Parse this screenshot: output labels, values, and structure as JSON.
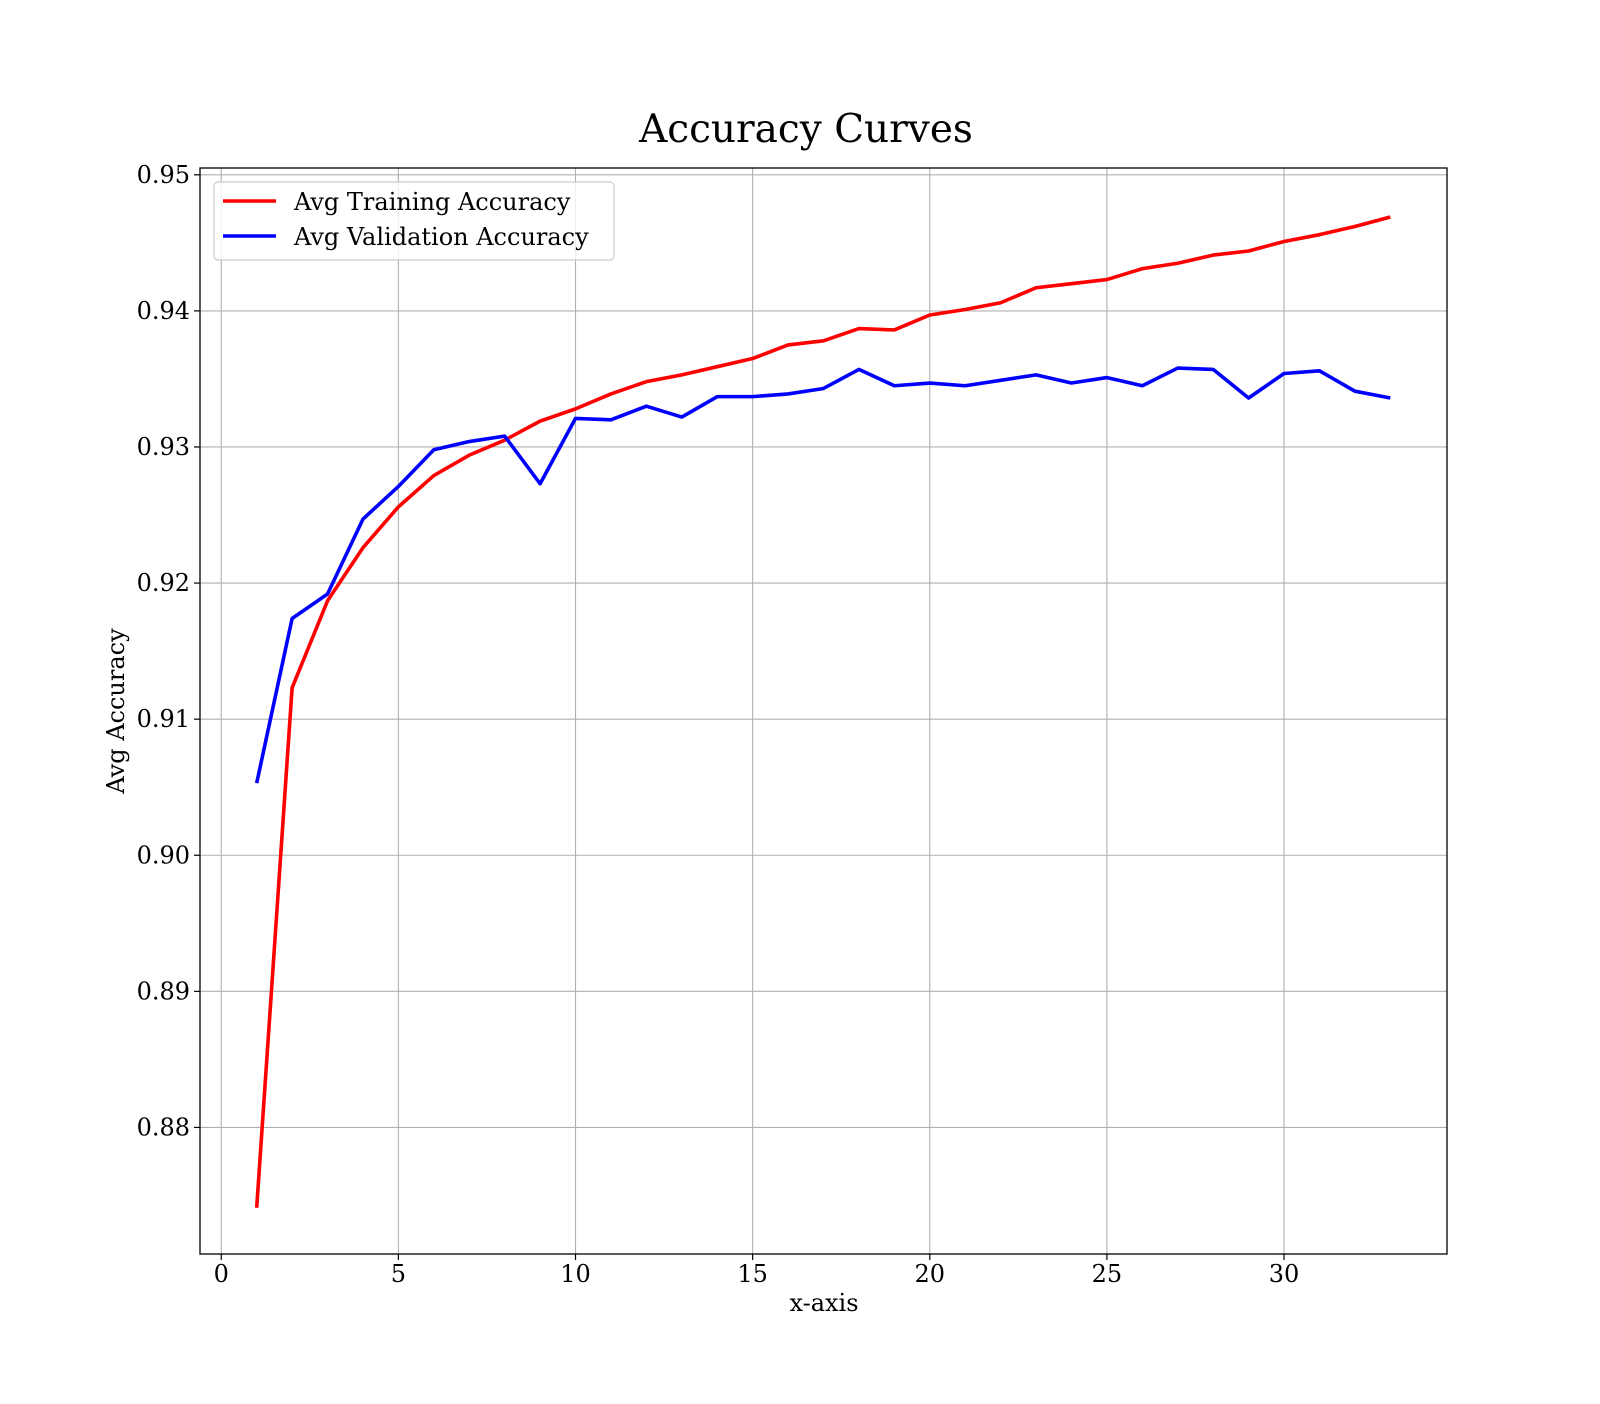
{
  "chart_data": {
    "type": "line",
    "title": "Accuracy Curves",
    "xlabel": "x-axis",
    "ylabel": "Avg Accuracy",
    "xlim": [
      -0.6,
      34.6
    ],
    "ylim": [
      0.8707,
      0.9505
    ],
    "xticks": [
      0,
      5,
      10,
      15,
      20,
      25,
      30
    ],
    "xtick_labels": [
      "0",
      "5",
      "10",
      "15",
      "20",
      "25",
      "30"
    ],
    "yticks": [
      0.88,
      0.89,
      0.9,
      0.91,
      0.92,
      0.93,
      0.94,
      0.95
    ],
    "ytick_labels": [
      "0.88",
      "0.89",
      "0.90",
      "0.91",
      "0.92",
      "0.93",
      "0.94",
      "0.95"
    ],
    "grid": true,
    "legend_position": "top-left",
    "x": [
      1,
      2,
      3,
      4,
      5,
      6,
      7,
      8,
      9,
      10,
      11,
      12,
      13,
      14,
      15,
      16,
      17,
      18,
      19,
      20,
      21,
      22,
      23,
      24,
      25,
      26,
      27,
      28,
      29,
      30,
      31,
      32,
      33
    ],
    "series": [
      {
        "name": "Avg Training Accuracy",
        "color": "#ff0000",
        "values": [
          0.8741,
          0.9123,
          0.9187,
          0.9226,
          0.9256,
          0.9279,
          0.9294,
          0.9305,
          0.9319,
          0.9328,
          0.9339,
          0.9348,
          0.9353,
          0.9359,
          0.9365,
          0.9375,
          0.9378,
          0.9387,
          0.9386,
          0.9397,
          0.9401,
          0.9406,
          0.9417,
          0.942,
          0.9423,
          0.9431,
          0.9435,
          0.9441,
          0.9444,
          0.9451,
          0.9456,
          0.9462,
          0.9469
        ]
      },
      {
        "name": "Avg Validation Accuracy",
        "color": "#0000ff",
        "values": [
          0.9053,
          0.9174,
          0.9192,
          0.9247,
          0.9271,
          0.9298,
          0.9304,
          0.9308,
          0.9273,
          0.9321,
          0.932,
          0.933,
          0.9322,
          0.9337,
          0.9337,
          0.9339,
          0.9343,
          0.9357,
          0.9345,
          0.9347,
          0.9345,
          0.9349,
          0.9353,
          0.9347,
          0.9351,
          0.9345,
          0.9358,
          0.9357,
          0.9336,
          0.9354,
          0.9356,
          0.9341,
          0.9336
        ]
      }
    ]
  }
}
